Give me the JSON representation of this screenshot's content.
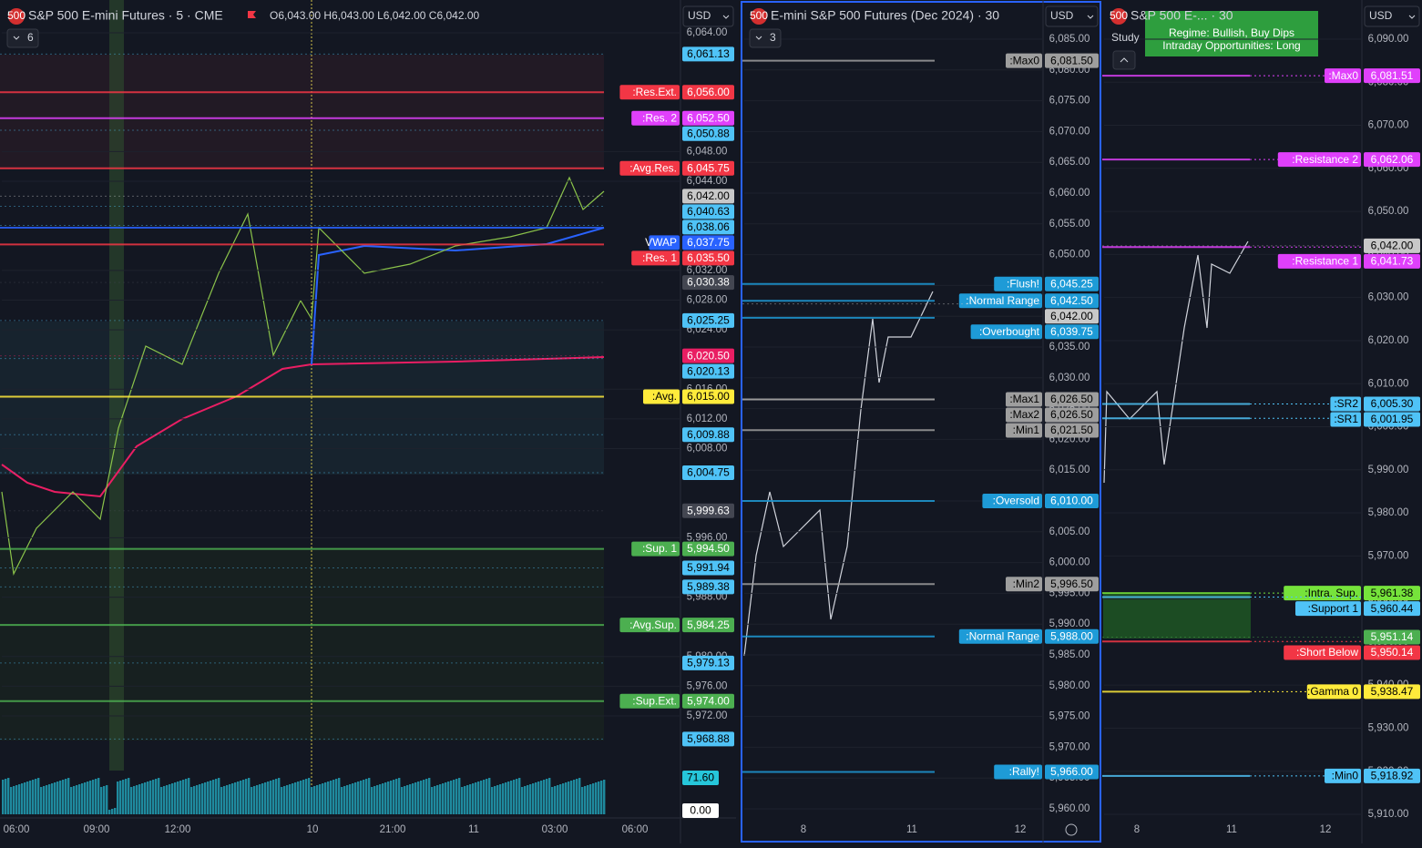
{
  "panels": [
    {
      "logo_text": "500",
      "title": "S&P 500 E-mini Futures · 5 · CME",
      "ohlc": "O6,043.00 H6,043.00 L6,042.00 C6,042.00",
      "indicator_count": "6",
      "currency": "USD",
      "yticks": [
        "6,064.00",
        "6,048.00",
        "6,044.00",
        "6,032.00",
        "6,028.00",
        "6,024.00",
        "6,016.00",
        "6,012.00",
        "6,008.00",
        "5,996.00",
        "5,988.00",
        "5,980.00",
        "5,976.00",
        "5,972.00"
      ],
      "levels": [
        {
          "value": "6,061.13",
          "color": "#4fc3f7"
        },
        {
          "label": ":Res.Ext.",
          "value": "6,056.00",
          "color": "#f23645"
        },
        {
          "label": ":Res. 2",
          "value": "6,052.50",
          "color": "#e040fb"
        },
        {
          "value": "6,050.88",
          "color": "#4fc3f7"
        },
        {
          "label": ":Avg.Res.",
          "value": "6,045.75",
          "color": "#f23645"
        },
        {
          "value": "6,042.00",
          "color": "#c8c8c8"
        },
        {
          "value": "6,040.63",
          "color": "#4fc3f7"
        },
        {
          "value": "6,038.06",
          "color": "#4fc3f7"
        },
        {
          "label": "VWAP",
          "value": "6,037.75",
          "color": "#2962ff"
        },
        {
          "label": ":Res. 1",
          "value": "6,035.50",
          "color": "#f23645"
        },
        {
          "value": "6,030.38",
          "color": "#434651"
        },
        {
          "value": "6,025.25",
          "color": "#4fc3f7"
        },
        {
          "value": "6,020.50",
          "color": "#e91e63"
        },
        {
          "value": "6,020.13",
          "color": "#4fc3f7"
        },
        {
          "label": ":Avg.",
          "value": "6,015.00",
          "color": "#ffeb3b"
        },
        {
          "value": "6,009.88",
          "color": "#4fc3f7"
        },
        {
          "value": "6,004.75",
          "color": "#4fc3f7"
        },
        {
          "value": "5,999.63",
          "color": "#434651"
        },
        {
          "label": ":Sup. 1",
          "value": "5,994.50",
          "color": "#4caf50"
        },
        {
          "value": "5,991.94",
          "color": "#4fc3f7"
        },
        {
          "value": "5,989.38",
          "color": "#4fc3f7"
        },
        {
          "label": ":Avg.Sup.",
          "value": "5,984.25",
          "color": "#4caf50"
        },
        {
          "value": "5,979.13",
          "color": "#4fc3f7"
        },
        {
          "label": ":Sup.Ext.",
          "value": "5,974.00",
          "color": "#4caf50"
        },
        {
          "value": "5,968.88",
          "color": "#4fc3f7"
        }
      ],
      "volume_labels": [
        {
          "value": "71.60",
          "color": "#26c6da"
        },
        {
          "value": "0.00",
          "color": "#ffffff"
        }
      ],
      "xlabels": [
        "06:00",
        "09:00",
        "12:00",
        "10",
        "21:00",
        "11",
        "03:00",
        "06:00"
      ]
    },
    {
      "logo_text": "500",
      "title": "E-mini S&P 500 Futures (Dec 2024) · 30",
      "indicator_count": "3",
      "currency": "USD",
      "yticks": [
        "6,085.00",
        "6,080.00",
        "6,075.00",
        "6,070.00",
        "6,065.00",
        "6,060.00",
        "6,055.00",
        "6,050.00",
        "6,045.00",
        "6,040.00",
        "6,035.00",
        "6,030.00",
        "6,025.00",
        "6,020.00",
        "6,015.00",
        "6,010.00",
        "6,005.00",
        "6,000.00",
        "5,995.00",
        "5,990.00",
        "5,985.00",
        "5,980.00",
        "5,975.00",
        "5,970.00",
        "5,965.00",
        "5,960.00"
      ],
      "levels": [
        {
          "label": ":Max0",
          "value": "6,081.50",
          "color": "#9e9e9e"
        },
        {
          "label": ":Flush!",
          "value": "6,045.25",
          "color": "#1e9bd7"
        },
        {
          "label": ":Normal Range",
          "value": "6,042.50",
          "color": "#1e9bd7"
        },
        {
          "value": "6,042.00",
          "color": "#c8c8c8"
        },
        {
          "label": ":Overbought",
          "value": "6,039.75",
          "color": "#1e9bd7"
        },
        {
          "label": ":Max1",
          "value": "6,026.50",
          "color": "#9e9e9e"
        },
        {
          "label": ":Max2",
          "value": "6,026.50",
          "color": "#9e9e9e"
        },
        {
          "label": ":Min1",
          "value": "6,021.50",
          "color": "#9e9e9e"
        },
        {
          "label": ":Oversold",
          "value": "6,010.00",
          "color": "#1e9bd7"
        },
        {
          "label": ":Min2",
          "value": "5,996.50",
          "color": "#9e9e9e"
        },
        {
          "label": ":Normal Range",
          "value": "5,988.00",
          "color": "#1e9bd7"
        },
        {
          "label": ":Rally!",
          "value": "5,966.00",
          "color": "#1e9bd7"
        }
      ],
      "xlabels": [
        "8",
        "11",
        "12"
      ]
    },
    {
      "logo_text": "500",
      "title": "S&P 500 E-...  · 30",
      "study": "Study",
      "annotation": [
        "Regime: Bullish, Buy Dips",
        "Intraday Opportunities: Long"
      ],
      "currency": "USD",
      "yticks": [
        "6,090.00",
        "6,080.00",
        "6,070.00",
        "6,060.00",
        "6,050.00",
        "6,040.00",
        "6,030.00",
        "6,020.00",
        "6,010.00",
        "6,000.00",
        "5,990.00",
        "5,980.00",
        "5,970.00",
        "5,960.00",
        "5,950.00",
        "5,940.00",
        "5,930.00",
        "5,920.00",
        "5,910.00"
      ],
      "levels": [
        {
          "label": ":Max0",
          "value": "6,081.51",
          "color": "#e040fb"
        },
        {
          "label": ":Resistance 2",
          "value": "6,062.06",
          "color": "#e040fb"
        },
        {
          "value": "6,042.00",
          "color": "#c8c8c8"
        },
        {
          "label": ":Resistance 1",
          "value": "6,041.73",
          "color": "#e040fb"
        },
        {
          "label": ":SR2",
          "value": "6,005.30",
          "color": "#4fc3f7"
        },
        {
          "label": ":SR1",
          "value": "6,001.95",
          "color": "#4fc3f7"
        },
        {
          "label": ":Intra. Sup.",
          "value": "5,961.38",
          "color": "#76e33b"
        },
        {
          "label": ":Support 1",
          "value": "5,960.44",
          "color": "#4fc3f7"
        },
        {
          "value": "5,951.14",
          "color": "#4caf50"
        },
        {
          "label": ":Short Below",
          "value": "5,950.14",
          "color": "#f23645"
        },
        {
          "label": ":Gamma 0",
          "value": "5,938.47",
          "color": "#ffeb3b"
        },
        {
          "label": ":Min0",
          "value": "5,918.92",
          "color": "#4fc3f7"
        }
      ],
      "xlabels": [
        "8",
        "11",
        "12"
      ]
    }
  ]
}
